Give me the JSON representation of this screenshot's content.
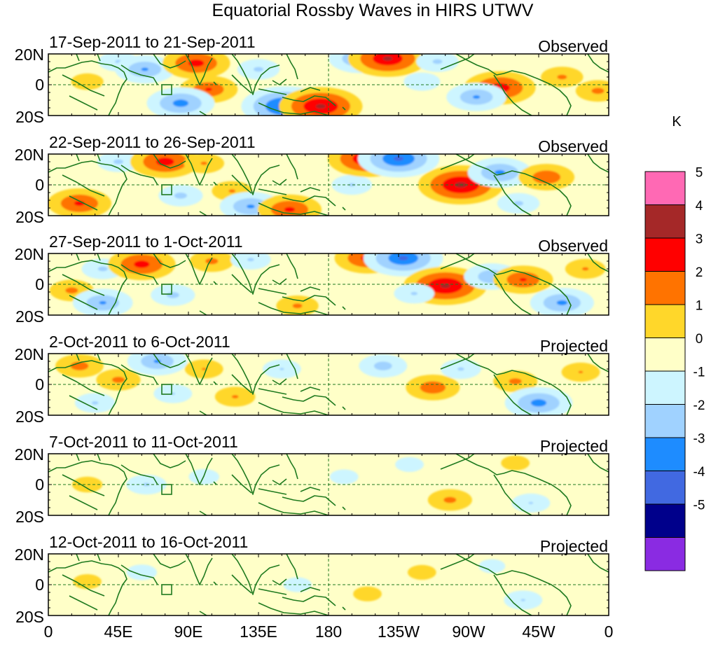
{
  "chart_data": {
    "type": "heatmap",
    "title": "Equatorial Rossby Waves in HIRS UTWV",
    "units": "K",
    "x_ticks": [
      "0",
      "45E",
      "90E",
      "135E",
      "180",
      "135W",
      "90W",
      "45W",
      "0"
    ],
    "y_ticks": [
      "20N",
      "0",
      "20S"
    ],
    "colorbar_labels": [
      "5",
      "4",
      "3",
      "2",
      "1",
      "0",
      "-1",
      "-2",
      "-3",
      "-4",
      "-5"
    ],
    "colorbar_colors": [
      "#ff69b4",
      "#a52828",
      "#ff0000",
      "#ff7300",
      "#ffd72a",
      "#ffffc8",
      "#cdf5ff",
      "#a0d2ff",
      "#1e8cff",
      "#4169e1",
      "#00008b",
      "#8a2be2"
    ],
    "panels": [
      {
        "date_range": "17-Sep-2011 to 21-Sep-2011",
        "kind": "Observed",
        "anomalies": [
          {
            "lon": 25,
            "lat": 2,
            "value": 0.8
          },
          {
            "lon": 45,
            "lat": 15,
            "value": -1.2
          },
          {
            "lon": 62,
            "lat": 10,
            "value": -2.2
          },
          {
            "lon": 95,
            "lat": 14,
            "value": 2.6
          },
          {
            "lon": 103,
            "lat": -3,
            "value": 2.1
          },
          {
            "lon": 85,
            "lat": -12,
            "value": -2.6
          },
          {
            "lon": 135,
            "lat": 10,
            "value": -1.3
          },
          {
            "lon": 152,
            "lat": -14,
            "value": -3.6
          },
          {
            "lon": 175,
            "lat": -14,
            "value": 3.4
          },
          {
            "lon": 200,
            "lat": 17,
            "value": -2.3
          },
          {
            "lon": 218,
            "lat": 17,
            "value": 3.2
          },
          {
            "lon": 250,
            "lat": 15,
            "value": -1.3
          },
          {
            "lon": 240,
            "lat": 2,
            "value": -1.0
          },
          {
            "lon": 290,
            "lat": -2,
            "value": 2.8
          },
          {
            "lon": 275,
            "lat": -8,
            "value": -2.2
          },
          {
            "lon": 330,
            "lat": 5,
            "value": 1.3
          },
          {
            "lon": 353,
            "lat": -4,
            "value": 1.4
          }
        ]
      },
      {
        "date_range": "22-Sep-2011 to 26-Sep-2011",
        "kind": "Observed",
        "anomalies": [
          {
            "lon": 20,
            "lat": -12,
            "value": 2.4
          },
          {
            "lon": 45,
            "lat": 15,
            "value": -1.3
          },
          {
            "lon": 75,
            "lat": 15,
            "value": 2.7
          },
          {
            "lon": 100,
            "lat": 14,
            "value": 1.2
          },
          {
            "lon": 85,
            "lat": -7,
            "value": -1.4
          },
          {
            "lon": 118,
            "lat": -4,
            "value": 1.2
          },
          {
            "lon": 130,
            "lat": -14,
            "value": -2.3
          },
          {
            "lon": 155,
            "lat": -16,
            "value": 2.4
          },
          {
            "lon": 195,
            "lat": 0,
            "value": -1.2
          },
          {
            "lon": 205,
            "lat": 17,
            "value": 3.2
          },
          {
            "lon": 225,
            "lat": 17,
            "value": -3.3
          },
          {
            "lon": 265,
            "lat": 0,
            "value": 3.5
          },
          {
            "lon": 290,
            "lat": 8,
            "value": -2.4
          },
          {
            "lon": 320,
            "lat": 5,
            "value": 2.0
          },
          {
            "lon": 302,
            "lat": -12,
            "value": -1.3
          }
        ]
      },
      {
        "date_range": "27-Sep-2011 to 1-Oct-2011",
        "kind": "Observed",
        "anomalies": [
          {
            "lon": 15,
            "lat": -4,
            "value": 1.4
          },
          {
            "lon": 35,
            "lat": 10,
            "value": -1.3
          },
          {
            "lon": 35,
            "lat": -12,
            "value": -2.2
          },
          {
            "lon": 60,
            "lat": 13,
            "value": 2.6
          },
          {
            "lon": 80,
            "lat": -7,
            "value": -1.4
          },
          {
            "lon": 105,
            "lat": 15,
            "value": 1.4
          },
          {
            "lon": 130,
            "lat": 16,
            "value": -1.2
          },
          {
            "lon": 160,
            "lat": -14,
            "value": 1.3
          },
          {
            "lon": 205,
            "lat": 17,
            "value": 2.5
          },
          {
            "lon": 228,
            "lat": 17,
            "value": -3.2
          },
          {
            "lon": 255,
            "lat": -1,
            "value": 3.4
          },
          {
            "lon": 235,
            "lat": -6,
            "value": -1.2
          },
          {
            "lon": 285,
            "lat": 5,
            "value": -2.0
          },
          {
            "lon": 305,
            "lat": 3,
            "value": 2.2
          },
          {
            "lon": 330,
            "lat": -12,
            "value": -2.4
          },
          {
            "lon": 345,
            "lat": 10,
            "value": 1.2
          }
        ]
      },
      {
        "date_range": "2-Oct-2011 to 6-Oct-2011",
        "kind": "Projected",
        "anomalies": [
          {
            "lon": 20,
            "lat": 12,
            "value": 1.6
          },
          {
            "lon": 45,
            "lat": 3,
            "value": 1.4
          },
          {
            "lon": 30,
            "lat": -12,
            "value": -1.2
          },
          {
            "lon": 70,
            "lat": 15,
            "value": -2.2
          },
          {
            "lon": 80,
            "lat": -6,
            "value": -1.1
          },
          {
            "lon": 100,
            "lat": 10,
            "value": 1.1
          },
          {
            "lon": 120,
            "lat": -8,
            "value": 1.2
          },
          {
            "lon": 150,
            "lat": 10,
            "value": -1.1
          },
          {
            "lon": 215,
            "lat": 12,
            "value": -1.6
          },
          {
            "lon": 247,
            "lat": -2,
            "value": 1.9
          },
          {
            "lon": 265,
            "lat": 10,
            "value": -1.2
          },
          {
            "lon": 300,
            "lat": 2,
            "value": 1.4
          },
          {
            "lon": 315,
            "lat": -12,
            "value": -2.6
          },
          {
            "lon": 342,
            "lat": 8,
            "value": 1.1
          }
        ]
      },
      {
        "date_range": "7-Oct-2011 to 11-Oct-2011",
        "kind": "Projected",
        "anomalies": [
          {
            "lon": 25,
            "lat": 0,
            "value": 0.7
          },
          {
            "lon": 63,
            "lat": 0,
            "value": -1.2
          },
          {
            "lon": 100,
            "lat": 5,
            "value": -0.7
          },
          {
            "lon": 190,
            "lat": 5,
            "value": -0.6
          },
          {
            "lon": 258,
            "lat": -10,
            "value": 1.4
          },
          {
            "lon": 232,
            "lat": 13,
            "value": -0.6
          },
          {
            "lon": 310,
            "lat": -12,
            "value": -1.1
          },
          {
            "lon": 300,
            "lat": 14,
            "value": 0.6
          }
        ]
      },
      {
        "date_range": "12-Oct-2011 to 16-Oct-2011",
        "kind": "Projected",
        "anomalies": [
          {
            "lon": 25,
            "lat": 2,
            "value": 0.6
          },
          {
            "lon": 60,
            "lat": 8,
            "value": -0.7
          },
          {
            "lon": 160,
            "lat": 0,
            "value": -0.6
          },
          {
            "lon": 205,
            "lat": -6,
            "value": 0.6
          },
          {
            "lon": 240,
            "lat": 8,
            "value": 0.6
          },
          {
            "lon": 305,
            "lat": -10,
            "value": -1.1
          },
          {
            "lon": 285,
            "lat": 12,
            "value": -0.5
          }
        ]
      }
    ]
  }
}
